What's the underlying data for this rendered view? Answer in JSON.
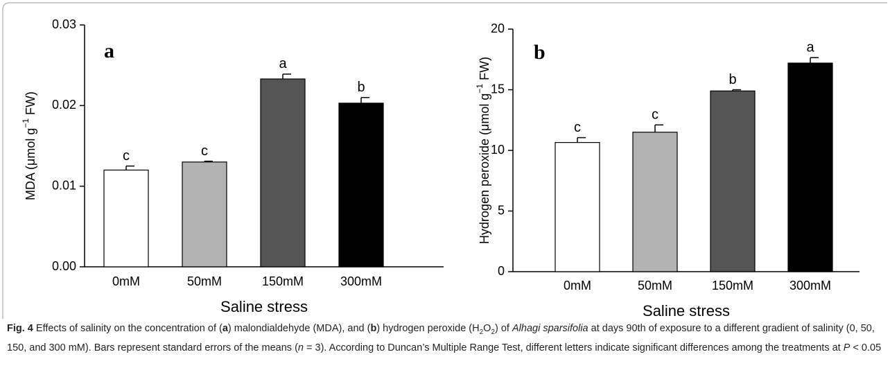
{
  "chart_data": [
    {
      "type": "bar",
      "panel": "a",
      "ylabel": "MDA (μmol g",
      "ylabel_sup": "−1",
      "ylabel_end": " FW)",
      "xlabel": "Saline stress",
      "categories": [
        "0mM",
        "50mM",
        "150mM",
        "300mM"
      ],
      "values": [
        0.012,
        0.013,
        0.0233,
        0.0203
      ],
      "errors": [
        0.0005,
        0.0001,
        0.0006,
        0.0007
      ],
      "letters": [
        "c",
        "c",
        "a",
        "b"
      ],
      "colors": [
        "#ffffff",
        "#b3b3b3",
        "#555555",
        "#000000"
      ],
      "ylim": [
        0,
        0.03
      ],
      "yticks": [
        {
          "value": 0,
          "label": "0.00"
        },
        0.01,
        0.02,
        0.03
      ]
    },
    {
      "type": "bar",
      "panel": "b",
      "ylabel": "Hydrogen peroxide  (μmol g",
      "ylabel_sup": "−1",
      "ylabel_end": " FW)",
      "xlabel": "Saline stress",
      "categories": [
        "0mM",
        "50mM",
        "150mM",
        "300mM"
      ],
      "values": [
        10.65,
        11.5,
        14.9,
        17.2
      ],
      "errors": [
        0.4,
        0.6,
        0.1,
        0.45
      ],
      "letters": [
        "c",
        "c",
        "b",
        "a"
      ],
      "colors": [
        "#ffffff",
        "#b3b3b3",
        "#555555",
        "#000000"
      ],
      "ylim": [
        0,
        20
      ],
      "yticks": [
        0,
        5,
        10,
        15,
        20
      ]
    }
  ],
  "caption": [
    {
      "text": "Fig. 4",
      "style": "b"
    },
    {
      "text": "  Effects of salinity on the concentration of (",
      "style": ""
    },
    {
      "text": "a",
      "style": "b"
    },
    {
      "text": ") malondialdehyde (MDA), and (",
      "style": ""
    },
    {
      "text": "b",
      "style": "b"
    },
    {
      "text": ") hydrogen peroxide (H",
      "style": ""
    },
    {
      "text": "2",
      "style": "sub"
    },
    {
      "text": "O",
      "style": ""
    },
    {
      "text": "2",
      "style": "sub"
    },
    {
      "text": ") of ",
      "style": ""
    },
    {
      "text": "Alhagi sparsifolia",
      "style": "i"
    },
    {
      "text": " at days 90th of exposure to a different gradient of salinity (0, 50, 150, and 300 mM). Bars represent standard errors of the means (",
      "style": ""
    },
    {
      "text": "n",
      "style": "i"
    },
    {
      "text": " = 3). According to Duncan’s Multiple Range Test, different letters indicate significant differences among the treatments at ",
      "style": ""
    },
    {
      "text": "P",
      "style": "i"
    },
    {
      "text": " < 0.05",
      "style": ""
    }
  ]
}
